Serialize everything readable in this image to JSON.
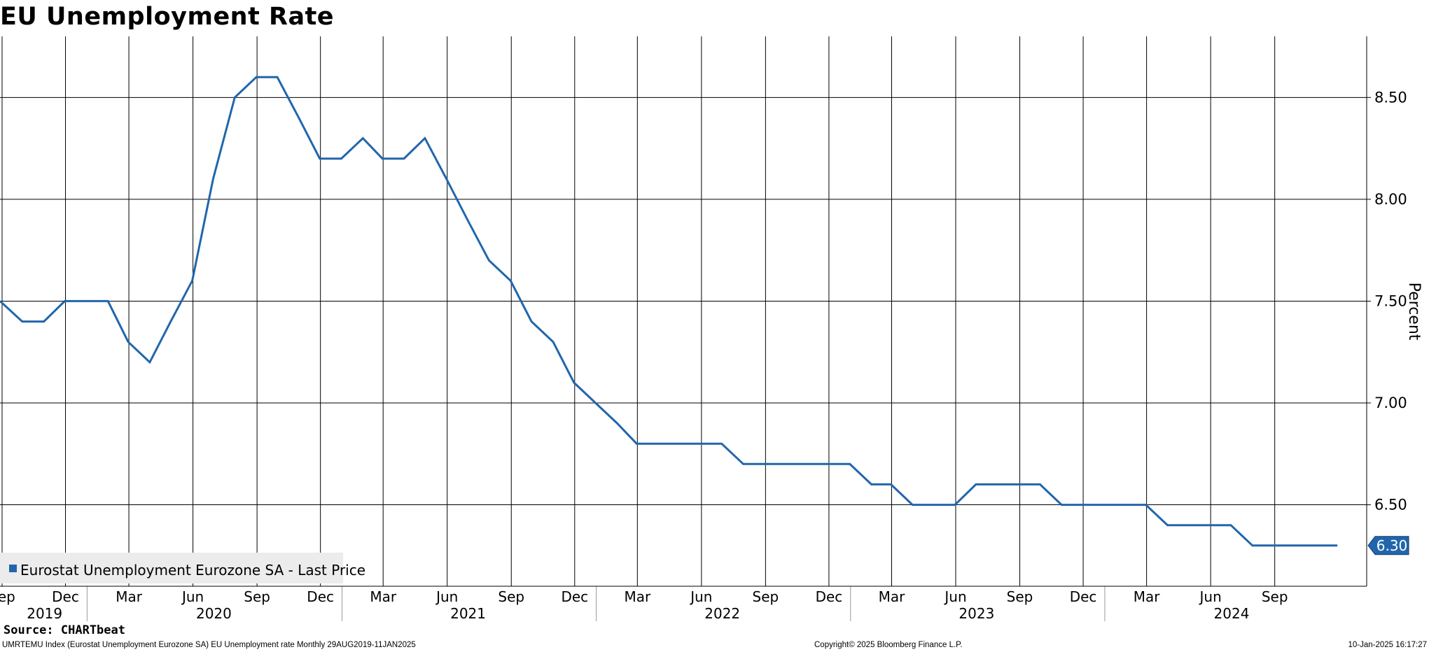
{
  "title": "EU Unemployment Rate",
  "source": "Source: CHARTbeat",
  "footer": {
    "description": "UMRTEMU Index (Eurostat Unemployment Eurozone SA) EU Unemployment rate  Monthly 29AUG2019-11JAN2025",
    "copyright": "Copyright© 2025 Bloomberg Finance L.P.",
    "timestamp": "10-Jan-2025 16:17:27"
  },
  "colors": {
    "series": "#2166ac",
    "grid": "#000000",
    "legend_bg": "#ececec",
    "label_text": "#ffffff"
  },
  "chart_data": {
    "type": "line",
    "title": "EU Unemployment Rate",
    "ylabel": "Percent",
    "ylim": [
      6.1,
      8.8
    ],
    "y_axis_position": "right",
    "yticks": [
      6.5,
      7.0,
      7.5,
      8.0,
      8.5
    ],
    "ytick_labels": [
      "6.50",
      "7.00",
      "7.50",
      "8.00",
      "8.50"
    ],
    "grid": true,
    "legend": {
      "label": "Eurostat Unemployment Eurozone SA - Last Price",
      "position": "bottom-left"
    },
    "last_value_label": "6.30",
    "xlim": [
      "2019-08-29",
      "2025-01-11"
    ],
    "xticks": [
      {
        "date": "2019-09-01",
        "label": "Sep"
      },
      {
        "date": "2019-12-01",
        "label": "Dec"
      },
      {
        "date": "2020-03-01",
        "label": "Mar"
      },
      {
        "date": "2020-06-01",
        "label": "Jun"
      },
      {
        "date": "2020-09-01",
        "label": "Sep"
      },
      {
        "date": "2020-12-01",
        "label": "Dec"
      },
      {
        "date": "2021-03-01",
        "label": "Mar"
      },
      {
        "date": "2021-06-01",
        "label": "Jun"
      },
      {
        "date": "2021-09-01",
        "label": "Sep"
      },
      {
        "date": "2021-12-01",
        "label": "Dec"
      },
      {
        "date": "2022-03-01",
        "label": "Mar"
      },
      {
        "date": "2022-06-01",
        "label": "Jun"
      },
      {
        "date": "2022-09-01",
        "label": "Sep"
      },
      {
        "date": "2022-12-01",
        "label": "Dec"
      },
      {
        "date": "2023-03-01",
        "label": "Mar"
      },
      {
        "date": "2023-06-01",
        "label": "Jun"
      },
      {
        "date": "2023-09-01",
        "label": "Sep"
      },
      {
        "date": "2023-12-01",
        "label": "Dec"
      },
      {
        "date": "2024-03-01",
        "label": "Mar"
      },
      {
        "date": "2024-06-01",
        "label": "Jun"
      },
      {
        "date": "2024-09-01",
        "label": "Sep"
      }
    ],
    "year_labels": [
      {
        "date": "2019-11-01",
        "label": "2019"
      },
      {
        "date": "2020-07-01",
        "label": "2020"
      },
      {
        "date": "2021-07-01",
        "label": "2021"
      },
      {
        "date": "2022-07-01",
        "label": "2022"
      },
      {
        "date": "2023-07-01",
        "label": "2023"
      },
      {
        "date": "2024-07-01",
        "label": "2024"
      }
    ],
    "series": [
      {
        "name": "Eurostat Unemployment Eurozone SA - Last Price",
        "points": [
          [
            "2019-08-29",
            7.5
          ],
          [
            "2019-09-30",
            7.4
          ],
          [
            "2019-10-31",
            7.4
          ],
          [
            "2019-11-30",
            7.5
          ],
          [
            "2019-12-31",
            7.5
          ],
          [
            "2020-01-31",
            7.5
          ],
          [
            "2020-02-29",
            7.3
          ],
          [
            "2020-03-31",
            7.2
          ],
          [
            "2020-04-30",
            7.4
          ],
          [
            "2020-05-31",
            7.6
          ],
          [
            "2020-06-30",
            8.1
          ],
          [
            "2020-07-31",
            8.5
          ],
          [
            "2020-08-31",
            8.6
          ],
          [
            "2020-09-30",
            8.6
          ],
          [
            "2020-10-31",
            8.4
          ],
          [
            "2020-11-30",
            8.2
          ],
          [
            "2020-12-31",
            8.2
          ],
          [
            "2021-01-31",
            8.3
          ],
          [
            "2021-02-28",
            8.2
          ],
          [
            "2021-03-31",
            8.2
          ],
          [
            "2021-04-30",
            8.3
          ],
          [
            "2021-05-31",
            8.1
          ],
          [
            "2021-06-30",
            7.9
          ],
          [
            "2021-07-31",
            7.7
          ],
          [
            "2021-08-31",
            7.6
          ],
          [
            "2021-09-30",
            7.4
          ],
          [
            "2021-10-31",
            7.3
          ],
          [
            "2021-11-30",
            7.1
          ],
          [
            "2021-12-31",
            7.0
          ],
          [
            "2022-01-31",
            6.9
          ],
          [
            "2022-02-28",
            6.8
          ],
          [
            "2022-03-31",
            6.8
          ],
          [
            "2022-04-30",
            6.8
          ],
          [
            "2022-05-31",
            6.8
          ],
          [
            "2022-06-30",
            6.8
          ],
          [
            "2022-07-31",
            6.7
          ],
          [
            "2022-08-31",
            6.7
          ],
          [
            "2022-09-30",
            6.7
          ],
          [
            "2022-10-31",
            6.7
          ],
          [
            "2022-11-30",
            6.7
          ],
          [
            "2022-12-31",
            6.7
          ],
          [
            "2023-01-31",
            6.6
          ],
          [
            "2023-02-28",
            6.6
          ],
          [
            "2023-03-31",
            6.5
          ],
          [
            "2023-04-30",
            6.5
          ],
          [
            "2023-05-31",
            6.5
          ],
          [
            "2023-06-30",
            6.6
          ],
          [
            "2023-07-31",
            6.6
          ],
          [
            "2023-08-31",
            6.6
          ],
          [
            "2023-09-30",
            6.6
          ],
          [
            "2023-10-31",
            6.5
          ],
          [
            "2023-11-30",
            6.5
          ],
          [
            "2023-12-31",
            6.5
          ],
          [
            "2024-01-31",
            6.5
          ],
          [
            "2024-02-29",
            6.5
          ],
          [
            "2024-03-31",
            6.4
          ],
          [
            "2024-04-30",
            6.4
          ],
          [
            "2024-05-31",
            6.4
          ],
          [
            "2024-06-30",
            6.4
          ],
          [
            "2024-07-31",
            6.3
          ],
          [
            "2024-08-31",
            6.3
          ],
          [
            "2024-09-30",
            6.3
          ],
          [
            "2024-10-31",
            6.3
          ],
          [
            "2024-11-30",
            6.3
          ]
        ]
      }
    ]
  }
}
